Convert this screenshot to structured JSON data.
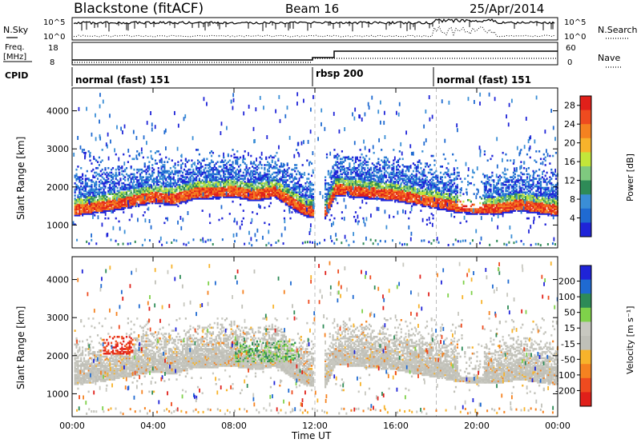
{
  "header": {
    "title": "Blackstone (fitACF)",
    "beam": "Beam 16",
    "date": "25/Apr/2014"
  },
  "sky_panel": {
    "left_label": "N.Sky",
    "right_label": "N.Search",
    "left_ticks": [
      "10^5",
      "10^0"
    ],
    "right_ticks": [
      "10^5",
      "10^0"
    ]
  },
  "freq_panel": {
    "left_label_1": "Freq.",
    "left_label_2": "[MHz]",
    "right_label": "Nave",
    "left_ticks": [
      "18",
      "8"
    ],
    "right_ticks": [
      "60",
      "0"
    ]
  },
  "cpid": {
    "label": "CPID",
    "segments": [
      {
        "start": 0,
        "name": "normal (fast) 151"
      },
      {
        "start": 12,
        "name": "rbsp 200"
      },
      {
        "start": 18,
        "name": "normal (fast) 151"
      }
    ]
  },
  "colors": {
    "power_scale": [
      "#1f24d8",
      "#1f6ad1",
      "#3a8ed6",
      "#2e8b57",
      "#7fc97f",
      "#c3e63a",
      "#f7b32b",
      "#f58220",
      "#ee4b1f",
      "#e0201a"
    ],
    "velocity_scale": [
      "#e0201a",
      "#ee4b1f",
      "#f58220",
      "#f7b32b",
      "#c0c0b8",
      "#c8c8c0",
      "#7fd14a",
      "#2e8b57",
      "#1f6ad1",
      "#1f24d8"
    ]
  },
  "chart_data": [
    {
      "type": "heatmap",
      "ylabel": "Slant Range [km]",
      "xlabel": "Time UT",
      "x_ticks": [
        "00:00",
        "04:00",
        "08:00",
        "12:00",
        "16:00",
        "20:00",
        "00:00"
      ],
      "y_ticks": [
        "1000",
        "2000",
        "3000",
        "4000"
      ],
      "xlim": [
        0,
        24
      ],
      "ylim": [
        400,
        4600
      ],
      "colorbar": {
        "label": "Power [dB]",
        "ticks": [
          "4",
          "8",
          "12",
          "16",
          "20",
          "24",
          "28"
        ],
        "range": [
          0,
          30
        ]
      },
      "band": {
        "x": [
          0,
          2,
          4,
          5,
          6,
          8,
          9,
          10,
          11,
          11.5,
          12.5,
          13,
          14,
          16,
          18,
          19,
          20,
          21,
          22,
          24
        ],
        "center_km": [
          1450,
          1600,
          1800,
          1750,
          1900,
          1950,
          1850,
          1950,
          1600,
          1450,
          1400,
          2000,
          1950,
          1850,
          1650,
          1550,
          1500,
          1500,
          1600,
          1450
        ]
      }
    },
    {
      "type": "heatmap",
      "ylabel": "Slant Range [km]",
      "xlabel": "Time UT",
      "x_ticks": [
        "00:00",
        "04:00",
        "08:00",
        "12:00",
        "16:00",
        "20:00",
        "00:00"
      ],
      "y_ticks": [
        "1000",
        "2000",
        "3000",
        "4000"
      ],
      "xlim": [
        0,
        24
      ],
      "ylim": [
        400,
        4600
      ],
      "colorbar": {
        "label": "Velocity [m s⁻¹]",
        "ticks": [
          "200",
          "100",
          "50",
          "15",
          "-15",
          "-50",
          "-100",
          "-200"
        ],
        "range": [
          -250,
          250
        ]
      }
    }
  ]
}
